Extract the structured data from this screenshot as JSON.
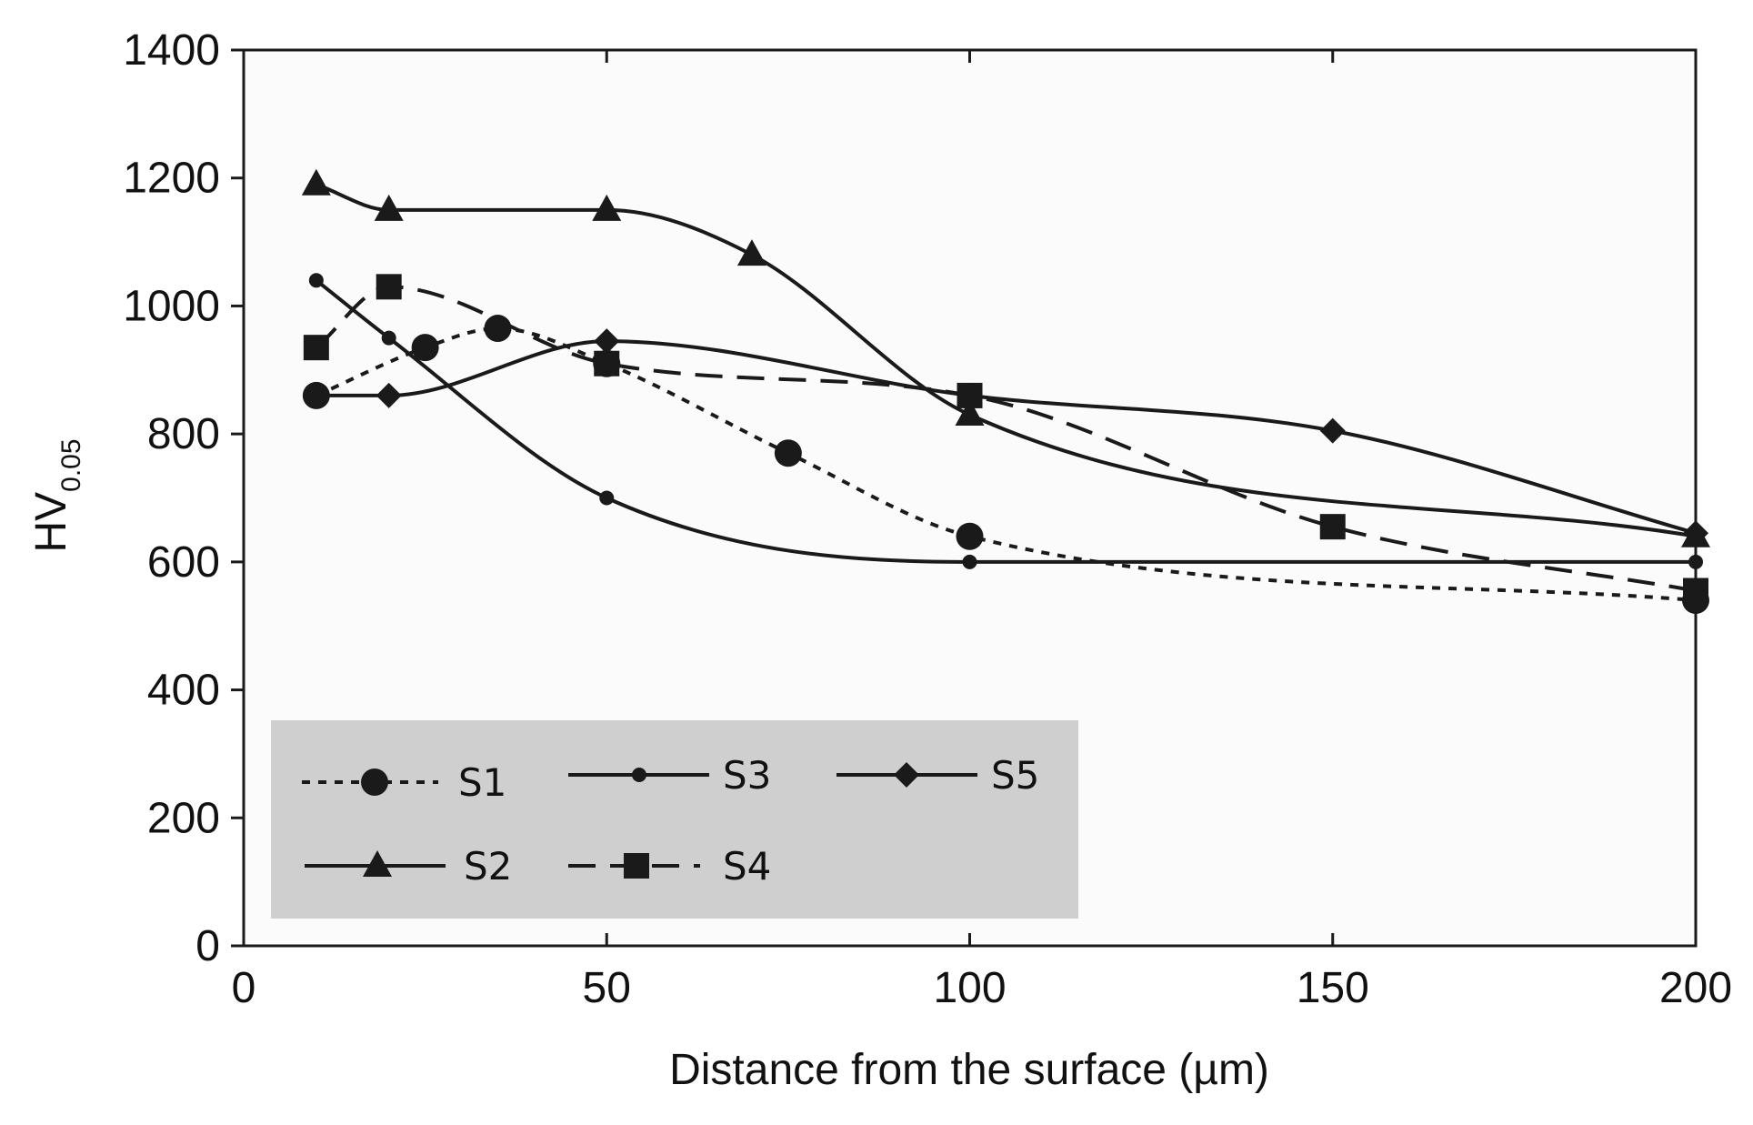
{
  "chart_data": {
    "type": "line",
    "title": "",
    "xlabel": "Distance from the surface (µm)",
    "ylabel": "HV",
    "ylabel_sub": "0.05",
    "xlim": [
      0,
      200
    ],
    "ylim": [
      0,
      1400
    ],
    "xticks": [
      "0",
      "50",
      "100",
      "150",
      "200"
    ],
    "yticks": [
      "0",
      "200",
      "400",
      "600",
      "800",
      "1000",
      "1200",
      "1400"
    ],
    "grid": false,
    "legend_position": "bottom-left",
    "colors": {
      "line": "#1a1a1a",
      "plot_background": "#fbfbfb",
      "legend_background": "#cfcfcf"
    },
    "series": [
      {
        "name": "S1",
        "style": "dotted",
        "marker": "circle",
        "x": [
          10,
          25,
          35,
          50,
          75,
          100,
          200
        ],
        "y": [
          860,
          935,
          965,
          910,
          770,
          640,
          540
        ]
      },
      {
        "name": "S2",
        "style": "solid",
        "marker": "triangle",
        "x": [
          10,
          20,
          50,
          70,
          100,
          200
        ],
        "y": [
          1190,
          1150,
          1150,
          1080,
          830,
          640
        ]
      },
      {
        "name": "S3",
        "style": "solid",
        "marker": "small-circle",
        "x": [
          10,
          20,
          50,
          100,
          200
        ],
        "y": [
          1040,
          950,
          700,
          600,
          600
        ]
      },
      {
        "name": "S4",
        "style": "dashed",
        "marker": "square",
        "x": [
          10,
          20,
          50,
          100,
          150,
          200
        ],
        "y": [
          935,
          1030,
          910,
          860,
          655,
          555
        ]
      },
      {
        "name": "S5",
        "style": "solid",
        "marker": "diamond",
        "x": [
          10,
          20,
          50,
          100,
          150,
          200
        ],
        "y": [
          860,
          860,
          945,
          860,
          805,
          645
        ]
      }
    ]
  }
}
